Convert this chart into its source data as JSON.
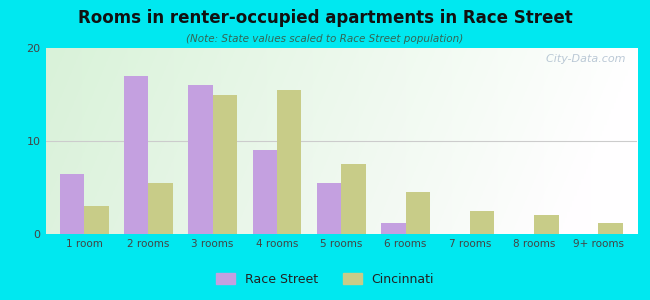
{
  "title": "Rooms in renter-occupied apartments in Race Street",
  "subtitle": "(Note: State values scaled to Race Street population)",
  "categories": [
    "1 room",
    "2 rooms",
    "3 rooms",
    "4 rooms",
    "5 rooms",
    "6 rooms",
    "7 rooms",
    "8 rooms",
    "9+ rooms"
  ],
  "race_street": [
    6.5,
    17.0,
    16.0,
    9.0,
    5.5,
    1.2,
    0,
    0,
    0
  ],
  "cincinnati": [
    3.0,
    5.5,
    15.0,
    15.5,
    7.5,
    4.5,
    2.5,
    2.0,
    1.2
  ],
  "race_street_color": "#c4a0e0",
  "cincinnati_color": "#c8cc88",
  "background_outer": "#00e8f0",
  "ylim": [
    0,
    20
  ],
  "yticks": [
    0,
    10,
    20
  ],
  "bar_width": 0.38,
  "legend_labels": [
    "Race Street",
    "Cincinnati"
  ],
  "watermark": "  City-Data.com"
}
